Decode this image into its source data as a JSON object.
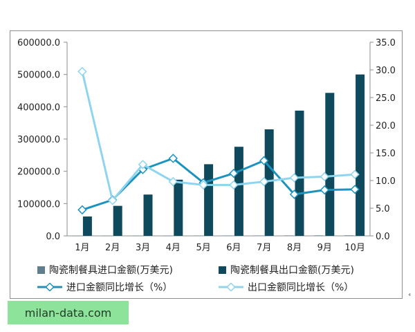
{
  "chart_data": {
    "type": "bar",
    "categories": [
      "1月",
      "2月",
      "3月",
      "4月",
      "5月",
      "6月",
      "7月",
      "8月",
      "9月",
      "10月"
    ],
    "series": [
      {
        "name": "陶瓷制餐具进口金额(万美元)",
        "type": "bar",
        "axis": "left",
        "color": "#5f7f8d",
        "values": [
          200,
          350,
          500,
          650,
          800,
          1000,
          1150,
          1300,
          1450,
          1600
        ]
      },
      {
        "name": "陶瓷制餐具出口金额(万美元)",
        "type": "bar",
        "axis": "left",
        "color": "#0f4a5c",
        "values": [
          60000,
          93000,
          128000,
          174000,
          222000,
          276000,
          330000,
          388000,
          443000,
          500000
        ]
      },
      {
        "name": "进口金额同比增长(%)",
        "type": "line",
        "axis": "right",
        "color": "#1b93be",
        "values": [
          4.7,
          6.5,
          12.0,
          14.0,
          9.6,
          11.3,
          13.6,
          7.5,
          8.3,
          8.4
        ]
      },
      {
        "name": "出口金额同比增长(%)",
        "type": "line",
        "axis": "right",
        "color": "#8fd4ee",
        "values": [
          29.7,
          6.4,
          12.9,
          9.8,
          9.2,
          9.2,
          9.8,
          10.5,
          10.7,
          11.1
        ]
      }
    ],
    "y_left": {
      "ylim": [
        0,
        600000
      ],
      "ticks": [
        "0.0",
        "100000.0",
        "200000.0",
        "300000.0",
        "400000.0",
        "500000.0",
        "600000.0"
      ]
    },
    "y_right": {
      "ylim": [
        0,
        35
      ],
      "ticks": [
        "0.0",
        "5.0",
        "10.0",
        "15.0",
        "20.0",
        "25.0",
        "30.0",
        "35.0"
      ]
    },
    "title": "",
    "xlabel": "",
    "ylabel": "",
    "grid": false,
    "legend_position": "bottom"
  },
  "legend": {
    "import_bar_label": "陶瓷制餐具进口金额(万美元)",
    "export_bar_label": "陶瓷制餐具出口金额(万美元)",
    "import_line_label": "进口金额同比增长（%）",
    "export_line_label": "出口金额同比增长（%）"
  },
  "watermark": {
    "text": "milan-data.com"
  },
  "corner_mark": {
    "text": "⁴"
  }
}
